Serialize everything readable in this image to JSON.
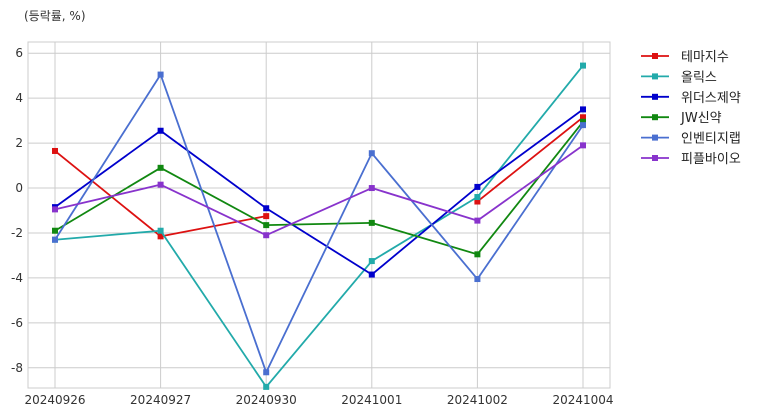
{
  "chart_data": {
    "type": "line",
    "unit_label": "(등락률, %)",
    "categories": [
      "20240926",
      "20240927",
      "20240930",
      "20241001",
      "20241002",
      "20241004"
    ],
    "ylim": [
      -8.9,
      6.5
    ],
    "yticks": [
      -8,
      -6,
      -4,
      -2,
      0,
      2,
      4,
      6
    ],
    "grid": true,
    "legend_position": "right-top-outside",
    "series": [
      {
        "name": "테마지수",
        "color": "#dd1111",
        "values": [
          1.65,
          -2.15,
          -1.25,
          null,
          -0.6,
          3.15
        ]
      },
      {
        "name": "올릭스",
        "color": "#22aaaa",
        "values": [
          -2.3,
          -1.9,
          -8.85,
          -3.25,
          -0.4,
          5.45
        ]
      },
      {
        "name": "위더스제약",
        "color": "#0000cc",
        "values": [
          -0.85,
          2.55,
          -0.9,
          -3.85,
          0.05,
          3.5
        ]
      },
      {
        "name": "JW신약",
        "color": "#118811",
        "values": [
          -1.9,
          0.9,
          -1.65,
          -1.55,
          -2.95,
          2.95
        ]
      },
      {
        "name": "인벤티지랩",
        "color": "#4a6fd0",
        "values": [
          -2.3,
          5.05,
          -8.2,
          1.55,
          -4.05,
          2.8
        ]
      },
      {
        "name": "피플바이오",
        "color": "#8833cc",
        "values": [
          -0.95,
          0.15,
          -2.1,
          0.0,
          -1.45,
          1.9
        ]
      }
    ]
  }
}
